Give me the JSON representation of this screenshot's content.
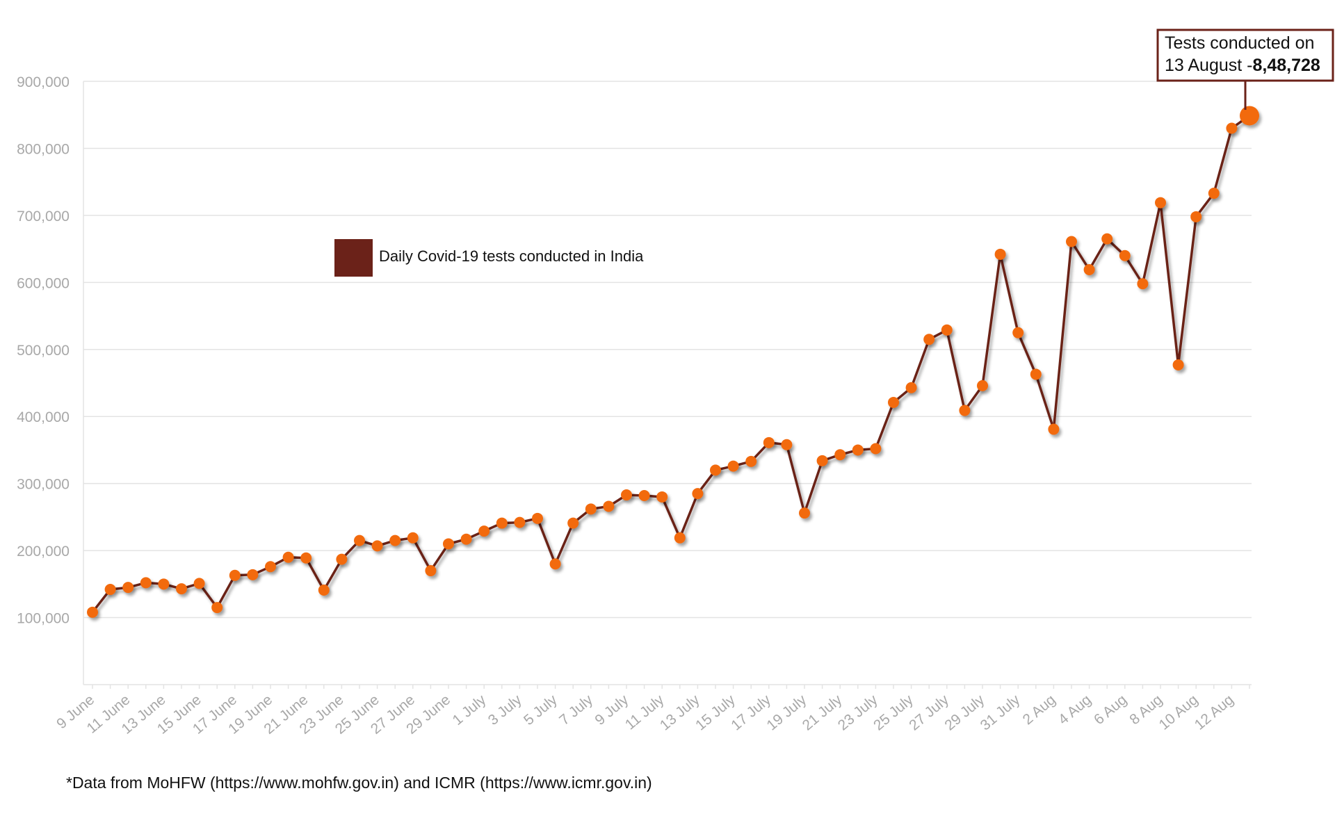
{
  "colors": {
    "line": "#6b2218",
    "marker": "#f26a10",
    "legend_swatch": "#6b2219",
    "annotation_border": "#6b2219",
    "grid": "#e3e3e3",
    "tick_text": "#a8a8a8"
  },
  "footnote": "*Data from MoHFW (https://www.mohfw.gov.in) and ICMR (https://www.icmr.gov.in)",
  "chart_data": {
    "type": "line",
    "title": "",
    "xlabel": "",
    "ylabel": "",
    "ylim": [
      0,
      900000
    ],
    "yticks": [
      100000,
      200000,
      300000,
      400000,
      500000,
      600000,
      700000,
      800000,
      900000
    ],
    "ytick_labels": [
      "100,000",
      "200,000",
      "300,000",
      "400,000",
      "500,000",
      "600,000",
      "700,000",
      "800,000",
      "900,000"
    ],
    "xtick_labels": [
      "9 June",
      "11 June",
      "13 June",
      "15 June",
      "17 June",
      "19 June",
      "21 June",
      "23 June",
      "25 June",
      "27 June",
      "29 June",
      "1 July",
      "3 July",
      "5 July",
      "7 July",
      "9 July",
      "11 July",
      "13 July",
      "15 July",
      "17 July",
      "19 July",
      "21 July",
      "23 July",
      "25 July",
      "27 July",
      "29 July",
      "31 July",
      "2 Aug",
      "4 Aug",
      "6 Aug",
      "8 Aug",
      "10 Aug",
      "12 Aug"
    ],
    "legend": {
      "label": "Daily Covid-19 tests conducted in India",
      "placement": "upper-left"
    },
    "annotation": {
      "line1": "Tests conducted on",
      "line2_prefix": "13 August -",
      "line2_value": "8,48,728"
    },
    "series": [
      {
        "name": "Daily Covid-19 tests conducted in India",
        "x": [
          "9 June",
          "10 June",
          "11 June",
          "12 June",
          "13 June",
          "14 June",
          "15 June",
          "16 June",
          "17 June",
          "18 June",
          "19 June",
          "20 June",
          "21 June",
          "22 June",
          "23 June",
          "24 June",
          "25 June",
          "26 June",
          "27 June",
          "28 June",
          "29 June",
          "30 June",
          "1 July",
          "2 July",
          "3 July",
          "4 July",
          "5 July",
          "6 July",
          "7 July",
          "8 July",
          "9 July",
          "10 July",
          "11 July",
          "12 July",
          "13 July",
          "14 July",
          "15 July",
          "16 July",
          "17 July",
          "18 July",
          "19 July",
          "20 July",
          "21 July",
          "22 July",
          "23 July",
          "24 July",
          "25 July",
          "26 July",
          "27 July",
          "28 July",
          "29 July",
          "30 July",
          "31 July",
          "1 Aug",
          "2 Aug",
          "3 Aug",
          "4 Aug",
          "5 Aug",
          "6 Aug",
          "7 Aug",
          "8 Aug",
          "9 Aug",
          "10 Aug",
          "11 Aug",
          "12 Aug",
          "13 Aug"
        ],
        "values": [
          108000,
          142000,
          145000,
          152000,
          150000,
          143000,
          151000,
          115000,
          163000,
          164000,
          176000,
          190000,
          189000,
          141000,
          187000,
          215000,
          207000,
          215000,
          219000,
          170000,
          210000,
          217000,
          229000,
          241000,
          242000,
          248000,
          180000,
          241000,
          262000,
          266000,
          283000,
          282000,
          280000,
          219000,
          285000,
          320000,
          326000,
          333000,
          361000,
          358000,
          256000,
          334000,
          343000,
          350000,
          352000,
          421000,
          443000,
          515000,
          529000,
          409000,
          446000,
          642000,
          525000,
          463000,
          381000,
          661000,
          619000,
          665000,
          640000,
          598000,
          719000,
          477000,
          698000,
          733000,
          830000,
          848728
        ]
      }
    ]
  }
}
